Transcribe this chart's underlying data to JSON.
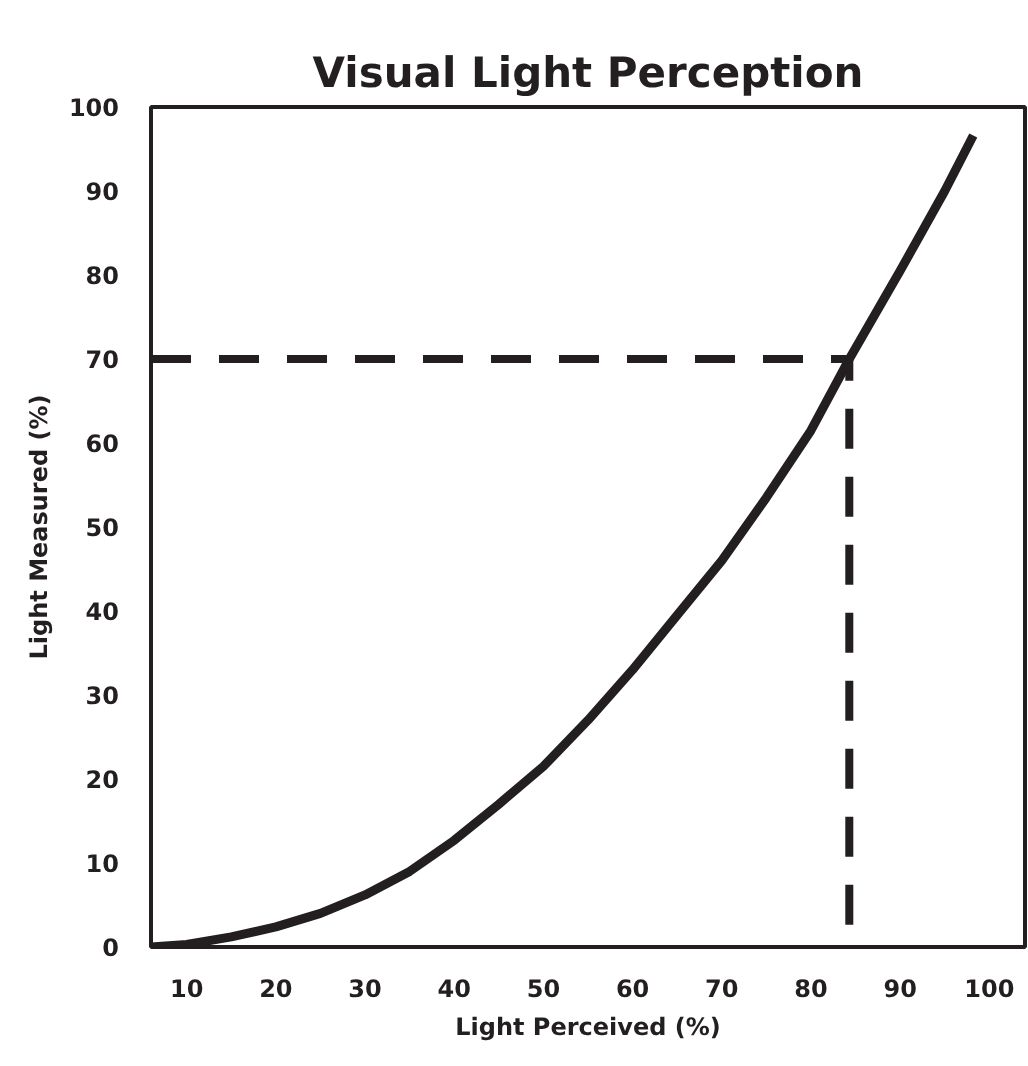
{
  "chart_data": {
    "type": "line",
    "title": "Visual Light Perception",
    "xlabel": "Light Perceived (%)",
    "ylabel": "Light Measured (%)",
    "xlim": [
      6,
      104
    ],
    "ylim": [
      0,
      100
    ],
    "xticks": [
      10,
      20,
      30,
      40,
      50,
      60,
      70,
      80,
      90,
      100
    ],
    "yticks": [
      0,
      10,
      20,
      30,
      40,
      50,
      60,
      70,
      80,
      90,
      100
    ],
    "grid": false,
    "marker": "none",
    "series": [
      {
        "color": "#231f20",
        "line_style": "solid",
        "x": [
          6,
          10,
          15,
          20,
          25,
          30,
          35,
          40,
          45,
          50,
          55,
          60,
          65,
          70,
          75,
          80,
          84.3,
          90,
          95,
          98.2
        ],
        "values": [
          0,
          0.3,
          1.2,
          2.4,
          4.0,
          6.2,
          9,
          12.7,
          17,
          21.5,
          27,
          33,
          39.5,
          46,
          53.5,
          61.5,
          70,
          80.5,
          90,
          96.6
        ]
      },
      {
        "color": "#231f20",
        "line_style": "dashed",
        "x": [
          6,
          84.3,
          84.3
        ],
        "values": [
          70,
          70,
          0
        ]
      }
    ]
  }
}
